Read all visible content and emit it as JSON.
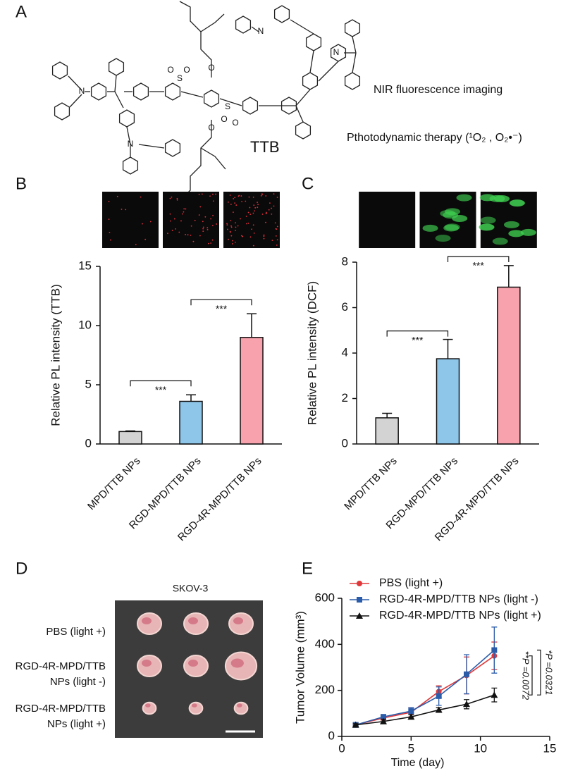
{
  "figure": {
    "panel_labels": [
      "A",
      "B",
      "C",
      "D",
      "E"
    ],
    "structure": {
      "name": "TTB",
      "atoms": {
        "N": "N",
        "S": "S",
        "O": "O"
      },
      "applications": [
        "NIR fluorescence imaging",
        "Pthotodynamic therapy (¹O₂ , O₂•⁻)"
      ]
    },
    "photo": {
      "title": "SKOV-3",
      "rows": [
        [
          "PBS (light +)"
        ],
        [
          "RGD-4R-MPD/TTB",
          "NPs (light -)"
        ],
        [
          "RGD-4R-MPD/TTB",
          "NPs (light +)"
        ]
      ]
    }
  },
  "chart_data": [
    {
      "type": "bar",
      "y_label": "Relative PL intensity (TTB)",
      "categories": [
        "MPD/TTB NPs",
        "RGD-MPD/TTB NPs",
        "RGD-4R-MPD/TTB NPs"
      ],
      "values": [
        1.05,
        3.6,
        9.0
      ],
      "errors": [
        0.05,
        0.55,
        2.0
      ],
      "colors": [
        "#d3d3d3",
        "#8ec6ea",
        "#f7a2ad"
      ],
      "micrograph_color": "#e0303c",
      "ylim": [
        0,
        15
      ],
      "yticks": [
        0,
        5,
        10,
        15
      ],
      "comparisons": [
        {
          "pair": [
            0,
            1
          ],
          "label": "***"
        },
        {
          "pair": [
            1,
            2
          ],
          "label": "***"
        }
      ]
    },
    {
      "type": "bar",
      "y_label": "Relative PL intensity (DCF)",
      "categories": [
        "MPD/TTB NPs",
        "RGD-MPD/TTB NPs",
        "RGD-4R-MPD/TTB NPs"
      ],
      "values": [
        1.15,
        3.75,
        6.9
      ],
      "errors": [
        0.2,
        0.85,
        0.95
      ],
      "colors": [
        "#d3d3d3",
        "#8ec6ea",
        "#f7a2ad"
      ],
      "micrograph_color": "#3fcf50",
      "ylim": [
        0,
        8
      ],
      "yticks": [
        0,
        2,
        4,
        6,
        8
      ],
      "comparisons": [
        {
          "pair": [
            0,
            1
          ],
          "label": "***"
        },
        {
          "pair": [
            1,
            2
          ],
          "label": "***"
        }
      ]
    },
    {
      "type": "line",
      "x_label": "Time (day)",
      "y_label": "Tumor Volume (mm³)",
      "x": [
        1,
        3,
        5,
        7,
        9,
        11
      ],
      "series": [
        {
          "name": "PBS (light +)",
          "color": "#e0383a",
          "marker": "circle",
          "values": [
            50,
            80,
            105,
            195,
            265,
            350
          ],
          "errors": [
            8,
            10,
            20,
            25,
            80,
            60
          ]
        },
        {
          "name": "RGD-4R-MPD/TTB NPs (light -)",
          "color": "#2a5caa",
          "marker": "square",
          "values": [
            50,
            85,
            110,
            175,
            270,
            375
          ],
          "errors": [
            10,
            10,
            15,
            40,
            85,
            100
          ]
        },
        {
          "name": "RGD-4R-MPD/TTB NPs (light +)",
          "color": "#111111",
          "marker": "triangle",
          "values": [
            50,
            65,
            85,
            115,
            140,
            180
          ],
          "errors": [
            5,
            10,
            10,
            10,
            20,
            30
          ]
        }
      ],
      "xlim": [
        0,
        15
      ],
      "xticks": [
        0,
        5,
        10,
        15
      ],
      "ylim": [
        0,
        600
      ],
      "yticks": [
        0,
        200,
        400,
        600
      ],
      "comparisons": [
        {
          "series": [
            0,
            2
          ],
          "label": "**P =0.0072"
        },
        {
          "series": [
            1,
            2
          ],
          "label": "*P =0.0321"
        }
      ]
    }
  ]
}
